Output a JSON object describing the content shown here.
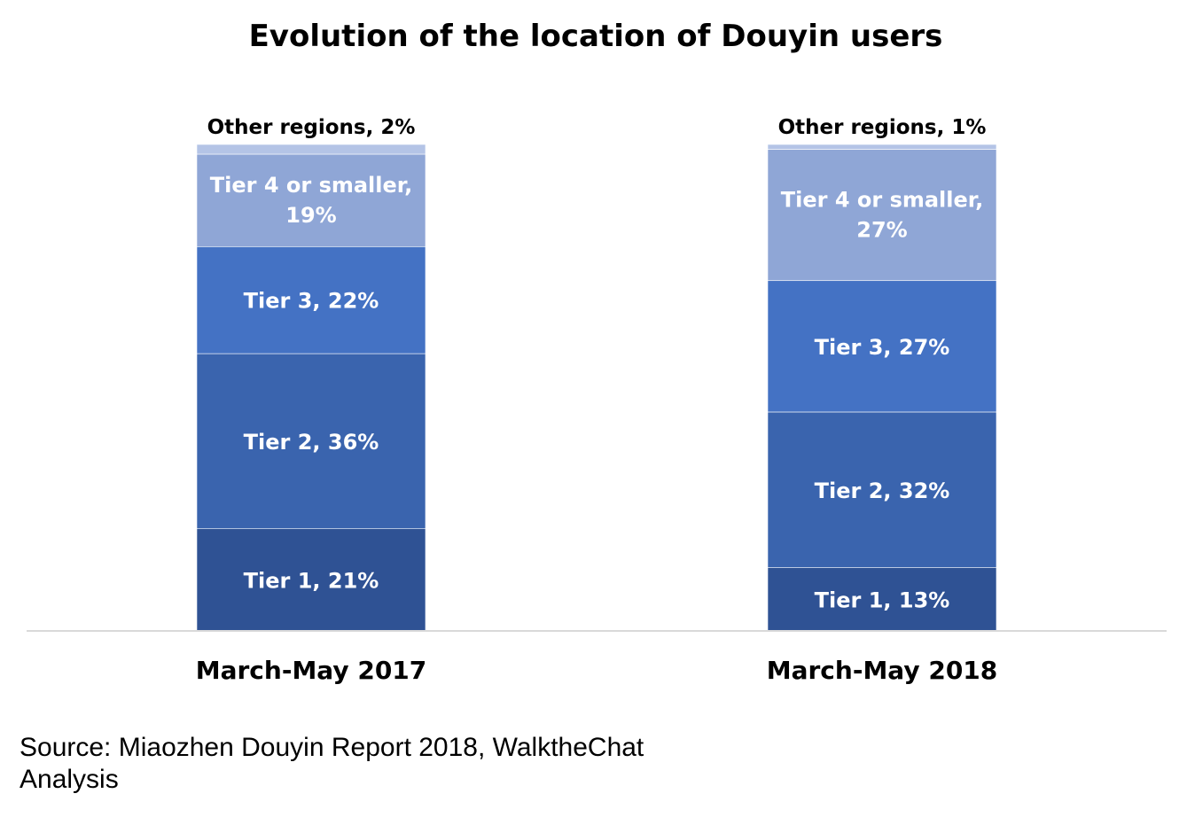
{
  "chart_data": {
    "type": "bar",
    "stacked": true,
    "title": "Evolution of the location of Douyin users",
    "categories": [
      "March-May 2017",
      "March-May 2018"
    ],
    "series": [
      {
        "name": "Tier 1",
        "values": [
          21,
          13
        ],
        "labels": [
          "Tier 1, 21%",
          "Tier 1, 13%"
        ],
        "color": "#2F5294"
      },
      {
        "name": "Tier 2",
        "values": [
          36,
          32
        ],
        "labels": [
          "Tier 2, 36%",
          "Tier 2, 32%"
        ],
        "color": "#3A64AE"
      },
      {
        "name": "Tier 3",
        "values": [
          22,
          27
        ],
        "labels": [
          "Tier 3, 22%",
          "Tier 3, 27%"
        ],
        "color": "#4472C4"
      },
      {
        "name": "Tier 4 or smaller",
        "values": [
          19,
          27
        ],
        "labels": [
          [
            "Tier 4 or smaller,",
            "19%"
          ],
          [
            "Tier 4 or smaller,",
            "27%"
          ]
        ],
        "color": "#8FA6D6"
      },
      {
        "name": "Other regions",
        "values": [
          2,
          1
        ],
        "labels": [
          "Other regions, 2%",
          "Other regions, 1%"
        ],
        "color": "#B4C4E6"
      }
    ],
    "ylim": [
      0,
      100
    ],
    "grid": false,
    "legend": "none"
  },
  "source": {
    "text": "Source: Miaozhen Douyin Report 2018, WalktheChat Analysis"
  },
  "colors": {
    "axis_line": "#D9D9D9",
    "label_dark": "#000000",
    "label_light": "#FFFFFF"
  }
}
